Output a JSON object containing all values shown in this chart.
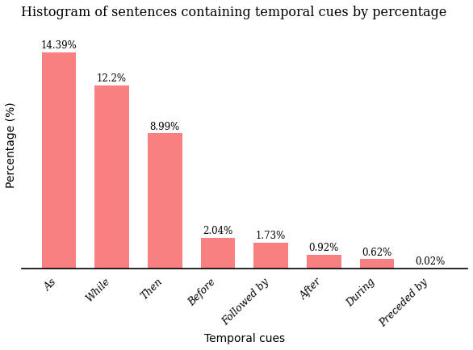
{
  "categories": [
    "As",
    "While",
    "Then",
    "Before",
    "Followed by",
    "After",
    "During",
    "Preceded by"
  ],
  "values": [
    14.39,
    12.2,
    8.99,
    2.04,
    1.73,
    0.92,
    0.62,
    0.02
  ],
  "labels": [
    "14.39%",
    "12.2%",
    "8.99%",
    "2.04%",
    "1.73%",
    "0.92%",
    "0.62%",
    "0.02%"
  ],
  "bar_color": "#F88080",
  "bar_edge_color": "#F88080",
  "title": "Histogram of sentences containing temporal cues by percentage",
  "xlabel": "Temporal cues",
  "ylabel": "Percentage (%)",
  "ylim": [
    0,
    16.5
  ],
  "background_color": "#ffffff",
  "title_fontsize": 11.5,
  "label_fontsize": 10,
  "tick_fontsize": 9,
  "bar_label_fontsize": 8.5,
  "bar_width": 0.65
}
